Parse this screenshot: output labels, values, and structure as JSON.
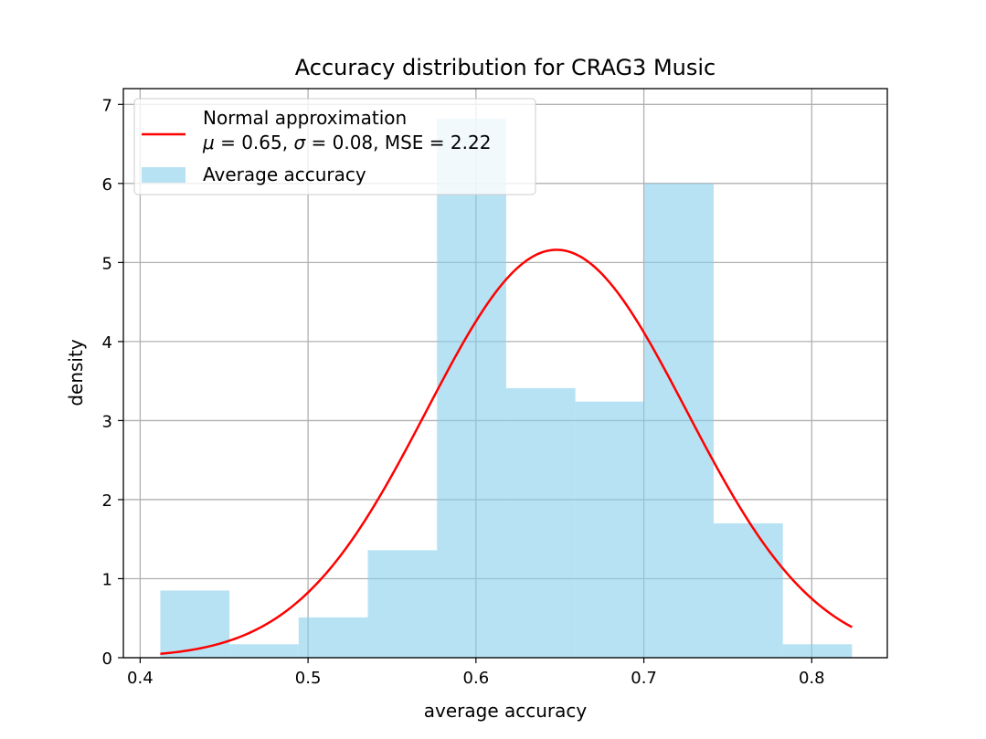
{
  "chart_data": {
    "type": "bar",
    "title": "Accuracy distribution for CRAG3 Music",
    "xlabel": "average accuracy",
    "ylabel": "density",
    "xlim": [
      0.39,
      0.845
    ],
    "ylim": [
      0,
      7.2
    ],
    "xticks": [
      0.4,
      0.5,
      0.6,
      0.7,
      0.8
    ],
    "xtick_labels": [
      "0.4",
      "0.5",
      "0.6",
      "0.7",
      "0.8"
    ],
    "yticks": [
      0,
      1,
      2,
      3,
      4,
      5,
      6,
      7
    ],
    "ytick_labels": [
      "0",
      "1",
      "2",
      "3",
      "4",
      "5",
      "6",
      "7"
    ],
    "grid": true,
    "legend_position": "top-left",
    "histogram": {
      "name": "Average accuracy",
      "color": "#87CEEB",
      "alpha": 0.6,
      "bin_edges": [
        0.412,
        0.4532,
        0.4944,
        0.5356,
        0.5768,
        0.618,
        0.6592,
        0.7004,
        0.7416,
        0.7828,
        0.824
      ],
      "density": [
        0.85,
        0.17,
        0.51,
        1.36,
        6.82,
        3.41,
        3.24,
        6.0,
        1.7,
        0.17
      ]
    },
    "curve": {
      "name": "Normal approximation",
      "color": "#ff0000",
      "mu": 0.648,
      "sigma": 0.0773,
      "x_range": [
        0.412,
        0.824
      ]
    },
    "legend": {
      "curve_label_line1": "Normal approximation",
      "curve_label_line2_mu_symbol": "μ",
      "curve_label_line2_mu_value": " = 0.65, ",
      "curve_label_line2_sigma_symbol": "σ",
      "curve_label_line2_sigma_value": " = 0.08, MSE = 2.22",
      "hist_label": "Average accuracy"
    }
  }
}
